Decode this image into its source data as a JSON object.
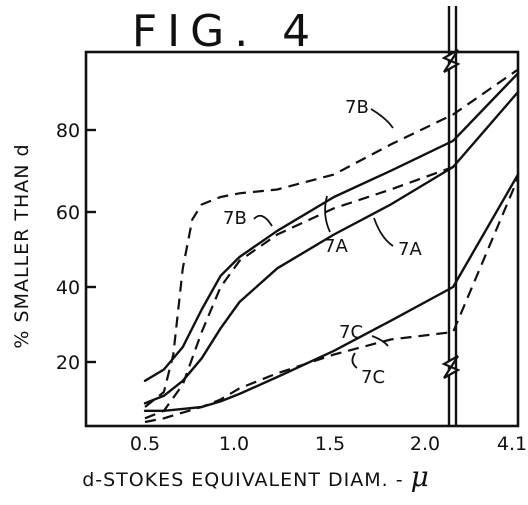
{
  "chart_data": {
    "type": "line",
    "title": "FIG. 4",
    "xlabel": "d-STOKES EQUIVALENT DIAM.",
    "xlabel_unit": "μ",
    "ylabel": "% SMALLER THAN d",
    "x_scale": "broken axis (linear 0.5–2.15, then break to 4.1)",
    "x_ticks": [
      "0.5",
      "1.0",
      "1.5",
      "2.0",
      "4.1"
    ],
    "y_ticks": [
      "20",
      "40",
      "60",
      "80"
    ],
    "ylim": [
      0,
      100
    ],
    "grid": false,
    "series": [
      {
        "name": "7A",
        "style": "solid",
        "x": [
          0.5,
          0.6,
          0.7,
          0.8,
          0.9,
          1.0,
          1.2,
          1.5,
          1.8,
          2.13,
          4.1
        ],
        "y": [
          9,
          11,
          15,
          21,
          29,
          36,
          45,
          54,
          62,
          72,
          92
        ]
      },
      {
        "name": "7A",
        "style": "dashed",
        "x": [
          0.5,
          0.6,
          0.7,
          0.8,
          0.9,
          1.0,
          1.2,
          1.5,
          1.8,
          2.13
        ],
        "y": [
          5,
          7,
          14,
          28,
          40,
          47,
          54,
          61,
          66,
          72
        ]
      },
      {
        "name": "7B",
        "style": "solid",
        "x": [
          0.5,
          0.6,
          0.7,
          0.8,
          0.9,
          1.0,
          1.2,
          1.5,
          1.8,
          2.13,
          4.1
        ],
        "y": [
          15,
          18,
          24,
          34,
          43,
          48,
          55,
          64,
          71,
          79,
          97
        ]
      },
      {
        "name": "7B",
        "style": "dashed",
        "x": [
          0.5,
          0.6,
          0.65,
          0.7,
          0.75,
          0.8,
          0.9,
          1.0,
          1.2,
          1.5,
          1.8,
          2.13,
          4.1
        ],
        "y": [
          8,
          12,
          22,
          45,
          58,
          62,
          64,
          65,
          66,
          70,
          78,
          86,
          98
        ]
      },
      {
        "name": "7C",
        "style": "solid",
        "x": [
          0.5,
          0.6,
          0.7,
          0.8,
          0.9,
          1.0,
          1.2,
          1.5,
          1.8,
          2.13,
          4.1
        ],
        "y": [
          7,
          7,
          7.5,
          8,
          9.5,
          11.5,
          16,
          23,
          31,
          40,
          70
        ]
      },
      {
        "name": "7C",
        "style": "dashed",
        "x": [
          0.5,
          0.6,
          0.7,
          0.8,
          0.9,
          1.0,
          1.2,
          1.5,
          1.8,
          2.13,
          4.1
        ],
        "y": [
          4,
          5,
          6.5,
          8,
          10,
          13,
          17,
          22,
          26,
          28,
          69
        ]
      }
    ],
    "callouts": [
      "7B",
      "7B",
      "7A",
      "7A",
      "7C",
      "7C"
    ]
  }
}
